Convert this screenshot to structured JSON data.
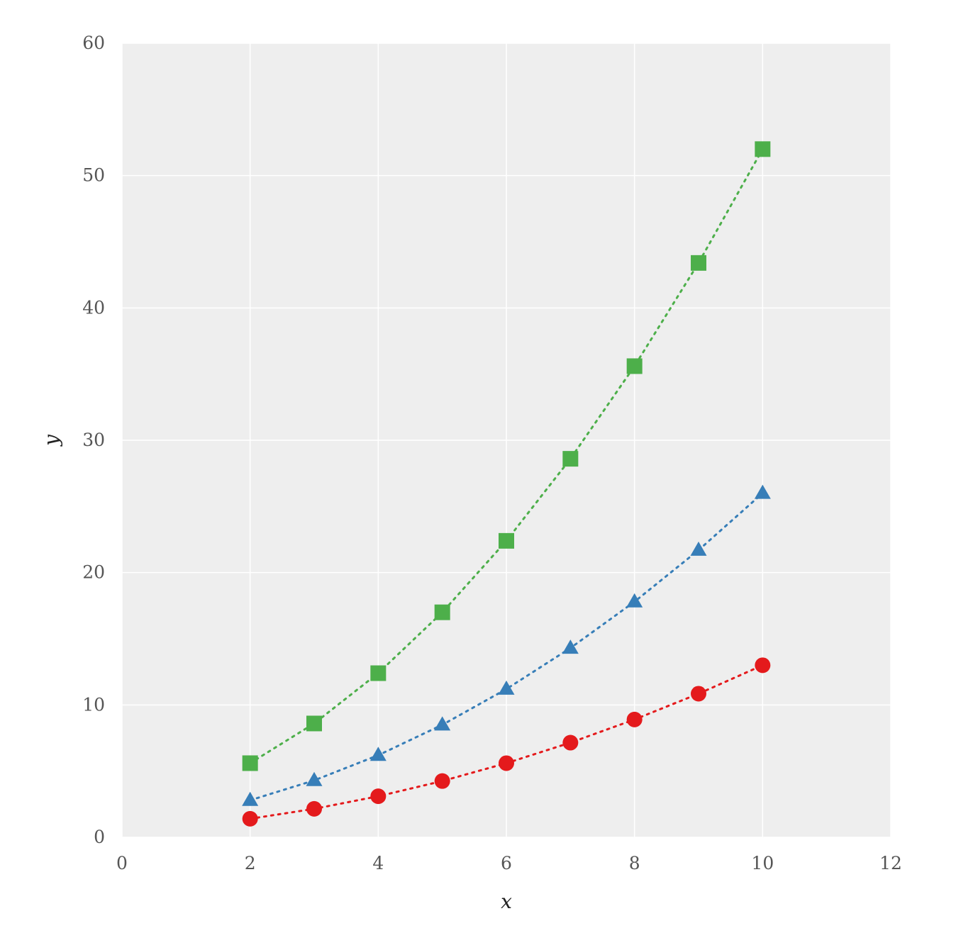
{
  "chart_data": {
    "type": "line",
    "title": "",
    "xlabel": "x",
    "ylabel": "y",
    "xlim": [
      0,
      12
    ],
    "ylim": [
      0,
      60
    ],
    "xticks": [
      0,
      2,
      4,
      6,
      8,
      10,
      12
    ],
    "yticks": [
      0,
      10,
      20,
      30,
      40,
      50,
      60
    ],
    "grid": true,
    "x": [
      2,
      3,
      4,
      5,
      6,
      7,
      8,
      9,
      10
    ],
    "series": [
      {
        "marker": "square",
        "color": "#4daf4a",
        "linestyle": "dotted",
        "values": [
          5.6,
          8.6,
          12.4,
          17.0,
          22.4,
          28.6,
          35.6,
          43.4,
          52.0
        ]
      },
      {
        "marker": "triangle",
        "color": "#377eb8",
        "linestyle": "dotted",
        "values": [
          2.8,
          4.3,
          6.2,
          8.5,
          11.2,
          14.3,
          17.8,
          21.7,
          26.0
        ]
      },
      {
        "marker": "circle",
        "color": "#e41a1c",
        "linestyle": "dotted",
        "values": [
          1.4,
          2.15,
          3.1,
          4.25,
          5.6,
          7.15,
          8.9,
          10.85,
          13.0
        ]
      }
    ]
  }
}
